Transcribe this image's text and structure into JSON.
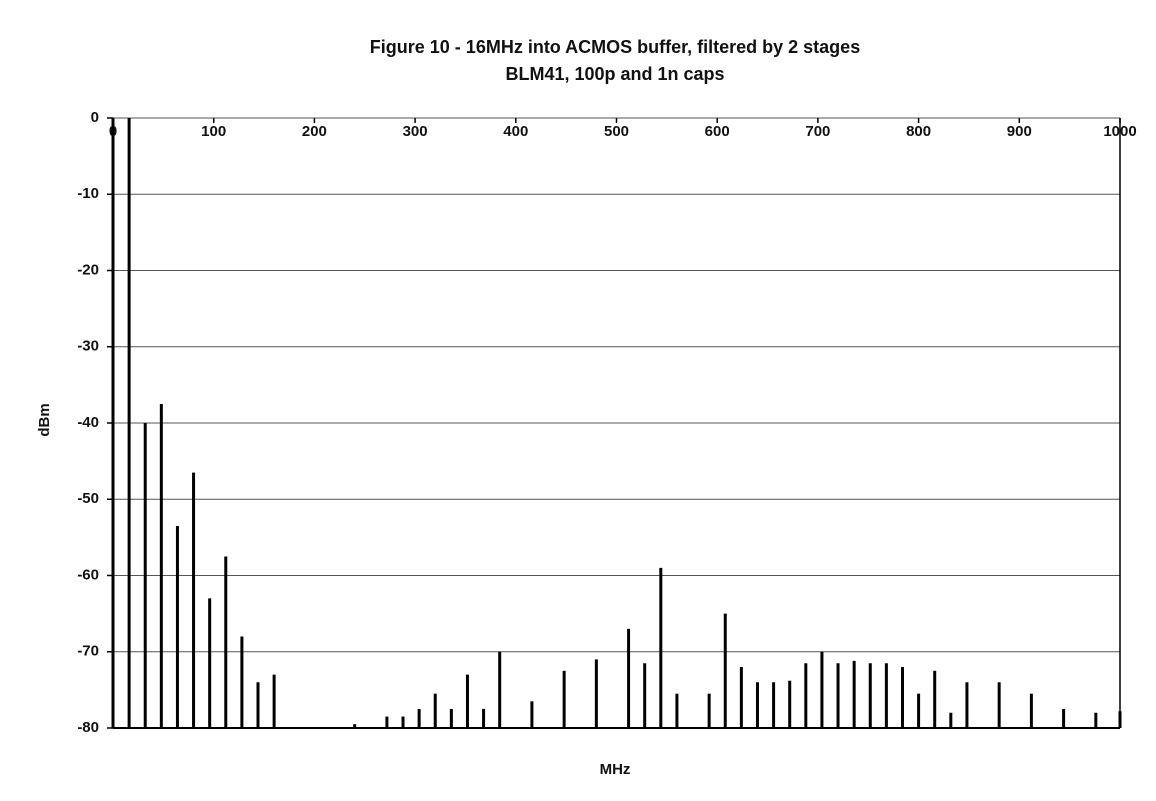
{
  "chart_data": {
    "type": "stem",
    "title": "Figure 10 - 16MHz into ACMOS buffer, filtered by 2 stages",
    "subtitle": "BLM41, 100p and 1n caps",
    "x_label": "MHz",
    "y_label": "dBm",
    "x": [
      0,
      16,
      32,
      48,
      64,
      80,
      96,
      112,
      128,
      144,
      160,
      240,
      272,
      288,
      304,
      320,
      336,
      352,
      368,
      384,
      416,
      448,
      480,
      512,
      528,
      544,
      560,
      592,
      608,
      624,
      640,
      656,
      672,
      688,
      704,
      720,
      736,
      752,
      768,
      784,
      800,
      816,
      832,
      848,
      880,
      912,
      944,
      976,
      1000
    ],
    "values": [
      0,
      0,
      -40,
      -37.5,
      -53.5,
      -46.5,
      -63,
      -57.5,
      -68,
      -74,
      -73,
      -79.5,
      -78.5,
      -78.5,
      -77.5,
      -75.5,
      -77.5,
      -73,
      -77.5,
      -70,
      -76.5,
      -72.5,
      -71,
      -67,
      -71.5,
      -59,
      -75.5,
      -75.5,
      -65,
      -72,
      -74,
      -74,
      -73.8,
      -71.5,
      -70,
      -71.5,
      -71.2,
      -71.5,
      -71.5,
      -72,
      -75.5,
      -72.5,
      -78,
      -74,
      -74,
      -75.5,
      -77.5,
      -78,
      -77.8
    ],
    "color": "#000000",
    "xlim": [
      0,
      1000
    ],
    "xticks": [
      0,
      100,
      200,
      300,
      400,
      500,
      600,
      700,
      800,
      900,
      1000
    ],
    "ylim": [
      -80,
      0
    ],
    "yticks": [
      0,
      -10,
      -20,
      -30,
      -40,
      -50,
      -60,
      -70,
      -80
    ],
    "grid": true
  }
}
